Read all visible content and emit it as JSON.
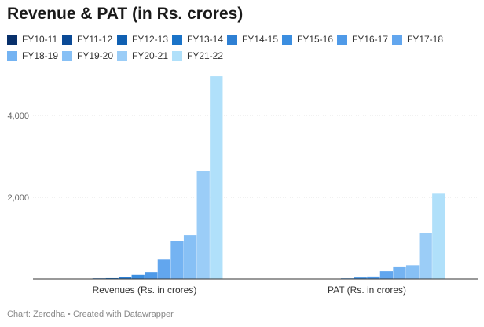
{
  "title": "Revenue & PAT (in Rs. crores)",
  "footer": {
    "source": "Chart: Zerodha",
    "separator": "•",
    "credit": "Created with Datawrapper"
  },
  "chart_data": {
    "type": "bar",
    "title": "Revenue & PAT (in Rs. crores)",
    "categories": [
      "Revenues (Rs. in crores)",
      "PAT (Rs. in crores)"
    ],
    "ylim": [
      0,
      5000
    ],
    "yticks": [
      2000,
      4000
    ],
    "ytick_labels": [
      "2,000",
      "4,000"
    ],
    "grid": true,
    "legend_position": "top",
    "series": [
      {
        "name": "FY10-11",
        "color": "#08306b",
        "values": [
          0,
          0
        ]
      },
      {
        "name": "FY11-12",
        "color": "#0b4a96",
        "values": [
          5,
          1
        ]
      },
      {
        "name": "FY12-13",
        "color": "#1060b2",
        "values": [
          15,
          2
        ]
      },
      {
        "name": "FY13-14",
        "color": "#1a73c8",
        "values": [
          20,
          5
        ]
      },
      {
        "name": "FY14-15",
        "color": "#2e80d4",
        "values": [
          45,
          15
        ]
      },
      {
        "name": "FY15-16",
        "color": "#3b8ee0",
        "values": [
          100,
          35
        ]
      },
      {
        "name": "FY16-17",
        "color": "#4f9ae8",
        "values": [
          170,
          60
        ]
      },
      {
        "name": "FY17-18",
        "color": "#62a6ee",
        "values": [
          475,
          190
        ]
      },
      {
        "name": "FY18-19",
        "color": "#74b3f2",
        "values": [
          925,
          290
        ]
      },
      {
        "name": "FY19-20",
        "color": "#87c0f5",
        "values": [
          1075,
          340
        ]
      },
      {
        "name": "FY20-21",
        "color": "#9bcdf7",
        "values": [
          2650,
          1120
        ]
      },
      {
        "name": "FY21-22",
        "color": "#b0e0fa",
        "values": [
          4960,
          2090
        ]
      }
    ]
  }
}
